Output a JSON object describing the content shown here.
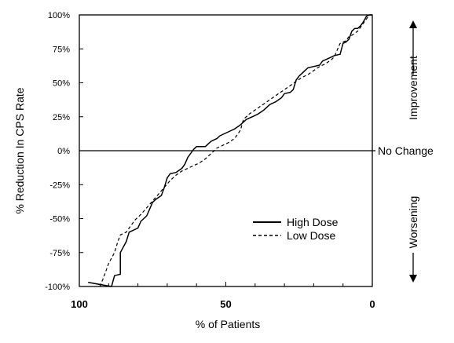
{
  "chart_data": {
    "type": "line",
    "title": "",
    "xlabel": "% of Patients",
    "ylabel": "% Reduction In CPS Rate",
    "x_ticks": [
      "100",
      "50",
      "0"
    ],
    "y_ticks": [
      "100%",
      "75%",
      "50%",
      "25%",
      "0%",
      "-25%",
      "-50%",
      "-75%",
      "-100%"
    ],
    "xlim": [
      100,
      0
    ],
    "ylim": [
      -100,
      100
    ],
    "grid": false,
    "legend_position": "lower-right",
    "annotations": {
      "zero_line_label": "No Change",
      "upper_label": "Improvement",
      "lower_label": "Worsening"
    },
    "series": [
      {
        "name": "High Dose",
        "style": "solid",
        "points": [
          [
            97,
            -97
          ],
          [
            89,
            -100
          ],
          [
            88,
            -92
          ],
          [
            86,
            -91
          ],
          [
            86,
            -75
          ],
          [
            84,
            -67
          ],
          [
            83,
            -60
          ],
          [
            80,
            -57
          ],
          [
            79,
            -52
          ],
          [
            77,
            -48
          ],
          [
            76,
            -43
          ],
          [
            75,
            -38
          ],
          [
            74,
            -36
          ],
          [
            72,
            -33
          ],
          [
            71,
            -27
          ],
          [
            70,
            -20
          ],
          [
            69,
            -17
          ],
          [
            67,
            -16
          ],
          [
            65,
            -13
          ],
          [
            64,
            -10
          ],
          [
            63,
            -5
          ],
          [
            62,
            -2
          ],
          [
            61,
            1
          ],
          [
            60,
            3
          ],
          [
            59,
            3
          ],
          [
            57,
            3
          ],
          [
            56,
            5
          ],
          [
            55,
            7
          ],
          [
            53,
            9
          ],
          [
            52,
            11
          ],
          [
            50,
            13
          ],
          [
            48,
            15
          ],
          [
            47,
            16
          ],
          [
            45,
            19
          ],
          [
            43,
            23
          ],
          [
            41,
            25
          ],
          [
            39,
            27
          ],
          [
            37,
            30
          ],
          [
            35,
            34
          ],
          [
            33,
            36
          ],
          [
            31,
            39
          ],
          [
            30,
            42
          ],
          [
            28,
            43
          ],
          [
            27,
            45
          ],
          [
            26,
            52
          ],
          [
            25,
            55
          ],
          [
            24,
            57
          ],
          [
            23,
            59
          ],
          [
            22,
            61
          ],
          [
            20,
            62
          ],
          [
            18,
            63
          ],
          [
            17,
            66
          ],
          [
            15,
            68
          ],
          [
            13,
            70
          ],
          [
            11,
            71
          ],
          [
            10,
            79
          ],
          [
            9,
            80
          ],
          [
            8,
            82
          ],
          [
            7,
            88
          ],
          [
            6,
            90
          ],
          [
            5,
            90
          ],
          [
            4,
            92
          ],
          [
            3,
            95
          ],
          [
            2,
            99
          ],
          [
            1,
            100
          ],
          [
            0,
            100
          ]
        ]
      },
      {
        "name": "Low Dose",
        "style": "dashed",
        "points": [
          [
            93,
            -100
          ],
          [
            92,
            -95
          ],
          [
            91,
            -89
          ],
          [
            90,
            -83
          ],
          [
            88,
            -75
          ],
          [
            87,
            -68
          ],
          [
            86,
            -62
          ],
          [
            84,
            -60
          ],
          [
            83,
            -57
          ],
          [
            81,
            -51
          ],
          [
            79,
            -47
          ],
          [
            77,
            -42
          ],
          [
            75,
            -37
          ],
          [
            73,
            -32
          ],
          [
            71,
            -27
          ],
          [
            69,
            -22
          ],
          [
            67,
            -18
          ],
          [
            65,
            -15
          ],
          [
            63,
            -13
          ],
          [
            61,
            -11
          ],
          [
            59,
            -9
          ],
          [
            57,
            -6
          ],
          [
            55,
            -2
          ],
          [
            53,
            2
          ],
          [
            51,
            4
          ],
          [
            49,
            6
          ],
          [
            47,
            9
          ],
          [
            45,
            15
          ],
          [
            44,
            23
          ],
          [
            42,
            27
          ],
          [
            40,
            30
          ],
          [
            38,
            33
          ],
          [
            36,
            36
          ],
          [
            34,
            39
          ],
          [
            32,
            42
          ],
          [
            30,
            45
          ],
          [
            28,
            48
          ],
          [
            26,
            51
          ],
          [
            24,
            54
          ],
          [
            22,
            56
          ],
          [
            20,
            59
          ],
          [
            18,
            62
          ],
          [
            16,
            64
          ],
          [
            14,
            67
          ],
          [
            13,
            69
          ],
          [
            12,
            74
          ],
          [
            11,
            79
          ],
          [
            9,
            81
          ],
          [
            8,
            84
          ],
          [
            7,
            85
          ],
          [
            5,
            88
          ],
          [
            4,
            91
          ],
          [
            3,
            94
          ],
          [
            2,
            97
          ],
          [
            1,
            100
          ],
          [
            0,
            100
          ]
        ]
      }
    ]
  }
}
